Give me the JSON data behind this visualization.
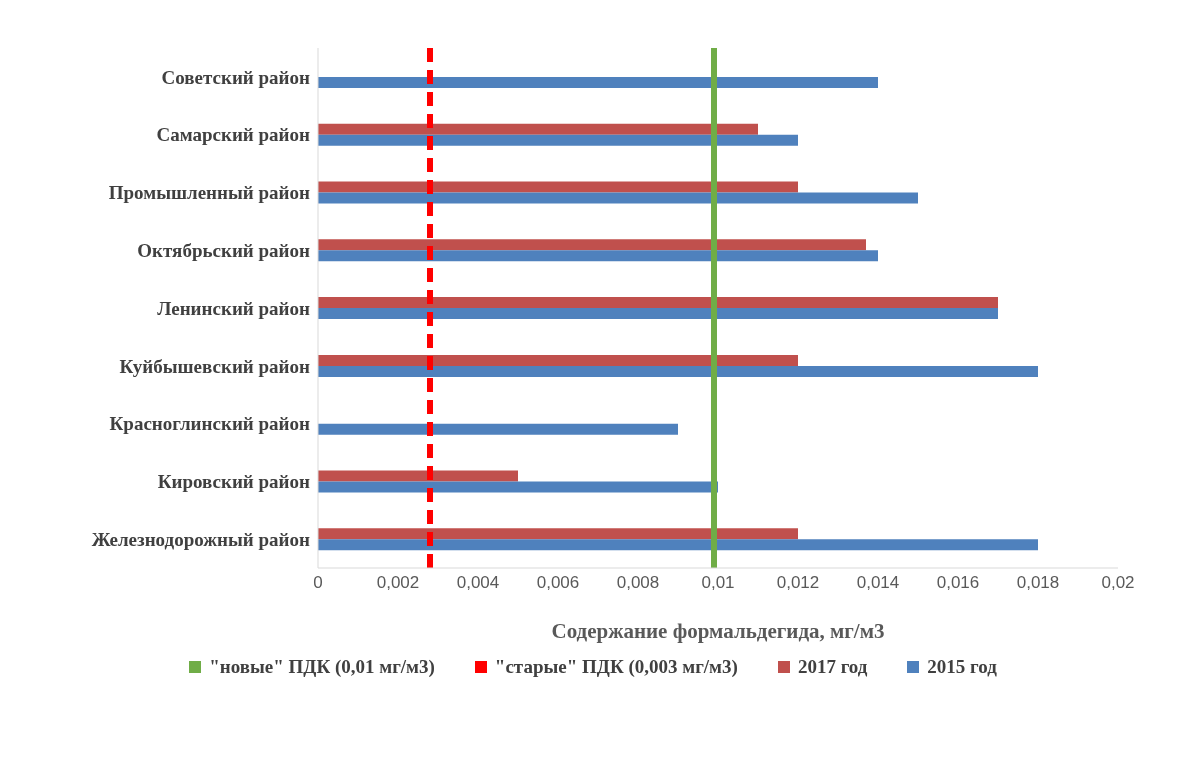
{
  "chart_data": {
    "type": "bar",
    "orientation": "horizontal",
    "xlabel": "Содержание формальдегида, мг/м3",
    "categories": [
      "Советский район",
      "Самарский район",
      "Промышленный район",
      "Октябрьский район",
      "Ленинский район",
      "Куйбышевский район",
      "Красноглинский район",
      "Кировский район",
      "Железнодорожный район"
    ],
    "series": [
      {
        "name": "2017 год",
        "color": "#c0504d",
        "values": [
          null,
          0.011,
          0.012,
          0.0137,
          0.017,
          0.012,
          null,
          0.005,
          0.012
        ]
      },
      {
        "name": "2015 год",
        "color": "#4f81bd",
        "values": [
          0.014,
          0.012,
          0.015,
          0.014,
          0.017,
          0.018,
          0.009,
          0.01,
          0.018
        ]
      }
    ],
    "xlim": [
      0,
      0.02
    ],
    "xticks": [
      0,
      {
        "value": 0.002,
        "label": "0,002"
      },
      {
        "value": 0.004,
        "label": "0,004"
      },
      {
        "value": 0.006,
        "label": "0,006"
      },
      {
        "value": 0.008,
        "label": "0,008"
      },
      {
        "value": 0.01,
        "label": "0,01"
      },
      {
        "value": 0.012,
        "label": "0,012"
      },
      {
        "value": 0.014,
        "label": "0,014"
      },
      {
        "value": 0.016,
        "label": "0,016"
      },
      {
        "value": 0.018,
        "label": "0,018"
      },
      {
        "value": 0.02,
        "label": "0,02"
      }
    ],
    "ref_lines": [
      {
        "axis": "x",
        "value": 0.0099,
        "label": "\"новые\" ПДК (0,01 мг/м3)",
        "color": "#70ad47",
        "line_style": "solid"
      },
      {
        "axis": "x",
        "value": 0.0028,
        "label": "\"старые\" ПДК (0,003 мг/м3)",
        "color": "#ff0000",
        "line_style": "dashed"
      }
    ],
    "grid": false,
    "legend": "bottom"
  }
}
